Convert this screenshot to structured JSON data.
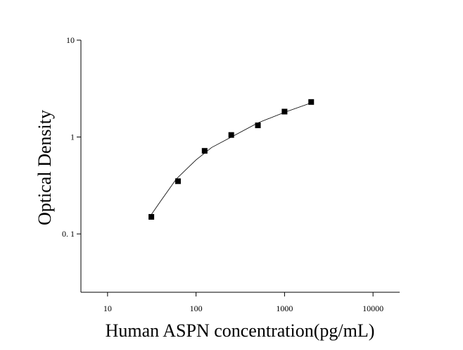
{
  "chart_data": {
    "type": "scatter",
    "x_label": "Human ASPN concentration(pg/mL)",
    "y_label": "Optical Density",
    "x": [
      31.25,
      62.5,
      125,
      250,
      500,
      1000,
      2000
    ],
    "values": [
      0.15,
      0.35,
      0.72,
      1.05,
      1.32,
      1.83,
      2.3
    ],
    "color": "#000000",
    "fit": {
      "x": [
        30,
        40,
        60,
        100,
        150,
        250,
        500,
        1000,
        2000
      ],
      "values": [
        0.15,
        0.22,
        0.37,
        0.58,
        0.78,
        1.0,
        1.4,
        1.8,
        2.25
      ]
    },
    "xlog": true,
    "ylog": true,
    "xlim": [
      5,
      20000
    ],
    "ylim": [
      0.025,
      10
    ],
    "xticks": [
      10,
      100,
      1000,
      10000
    ],
    "yticks": [
      10,
      1,
      {
        "value": 0.1,
        "label": "0. 1"
      }
    ]
  }
}
